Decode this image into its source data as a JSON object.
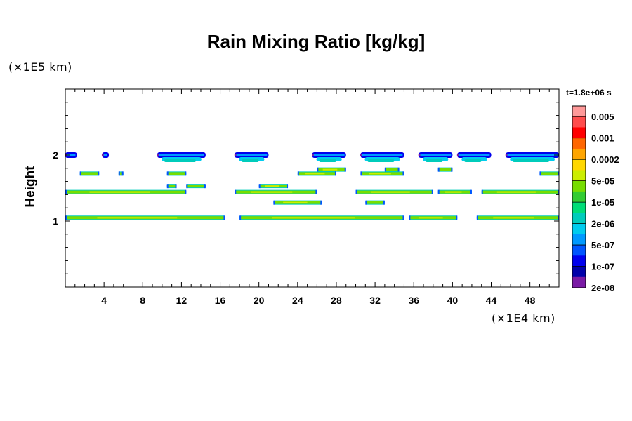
{
  "chart_data": {
    "type": "heatmap",
    "title": "Rain Mixing Ratio [kg/kg]",
    "xlabel": "",
    "ylabel": "Height",
    "x_unit_label": "(×1E4 km)",
    "y_unit_label": "(×1E5 km)",
    "time_label": "t=1.8e+06 s",
    "xlim": [
      0,
      51
    ],
    "ylim": [
      0,
      3
    ],
    "x_ticks": [
      4,
      8,
      12,
      16,
      20,
      24,
      28,
      32,
      36,
      40,
      44,
      48
    ],
    "y_ticks": [
      1,
      2
    ],
    "colorbar": {
      "labels": [
        "0.005",
        "0.001",
        "0.0002",
        "5e-05",
        "1e-05",
        "2e-06",
        "5e-07",
        "1e-07",
        "2e-08"
      ],
      "colors": [
        "#ff9999",
        "#ff4c4c",
        "#ff0000",
        "#ff6600",
        "#ffa500",
        "#ffd700",
        "#ccee00",
        "#77dd00",
        "#33cc33",
        "#00dd77",
        "#00ccbb",
        "#00ccee",
        "#0099ff",
        "#0055ff",
        "#0000ee",
        "#0000aa",
        "#7a1aa5"
      ]
    },
    "layers": [
      {
        "height": 2.0,
        "segments": [
          [
            0,
            1.2
          ],
          [
            3.8,
            4.5
          ],
          [
            9.5,
            14.5
          ],
          [
            17.5,
            21
          ],
          [
            25.5,
            29
          ],
          [
            30.5,
            35
          ],
          [
            36.5,
            40
          ],
          [
            40.5,
            44
          ],
          [
            45.5,
            51
          ]
        ]
      },
      {
        "height": 1.78,
        "segments": [
          [
            26,
            29
          ],
          [
            33,
            34.5
          ],
          [
            38.5,
            40
          ]
        ]
      },
      {
        "height": 1.72,
        "segments": [
          [
            1.5,
            3.5
          ],
          [
            5.5,
            6
          ],
          [
            10.5,
            12.5
          ],
          [
            24,
            28
          ],
          [
            30.5,
            35
          ],
          [
            49,
            51
          ]
        ]
      },
      {
        "height": 1.53,
        "segments": [
          [
            10.5,
            11.5
          ],
          [
            12.5,
            14.5
          ],
          [
            20,
            23
          ]
        ]
      },
      {
        "height": 1.44,
        "segments": [
          [
            0,
            12.5
          ],
          [
            17.5,
            26
          ],
          [
            30,
            38
          ],
          [
            38.5,
            42
          ],
          [
            43,
            51
          ]
        ]
      },
      {
        "height": 1.28,
        "segments": [
          [
            21.5,
            26.5
          ],
          [
            31,
            33
          ]
        ]
      },
      {
        "height": 1.05,
        "segments": [
          [
            0,
            16.5
          ],
          [
            18,
            35
          ],
          [
            35.5,
            40.5
          ],
          [
            42.5,
            51
          ]
        ]
      }
    ]
  }
}
